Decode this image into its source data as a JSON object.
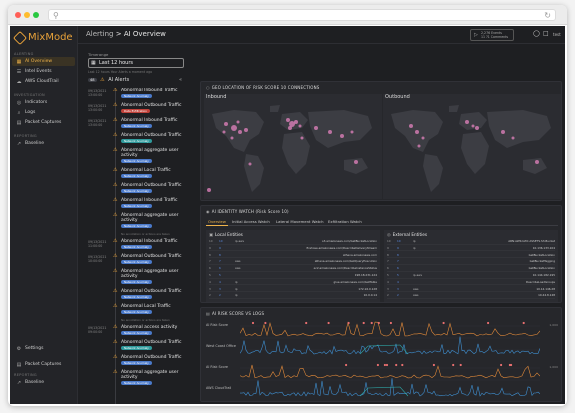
{
  "app": {
    "logo": "MixMode",
    "breadcrumb": {
      "parent": "Alerting",
      "current": "AI Overview"
    },
    "time_range": {
      "line1": "2,276 Events",
      "line2": "11 ?1 Comments"
    },
    "user": "test"
  },
  "sidebar": {
    "sections": [
      {
        "label": "ALERTING",
        "items": [
          {
            "label": "AI Overview",
            "icon": "grid-icon",
            "active": true
          },
          {
            "label": "Intel Events",
            "icon": "list-icon",
            "active": false
          },
          {
            "label": "AWS CloudTrail",
            "icon": "cloud-icon",
            "active": false
          }
        ]
      },
      {
        "label": "INVESTIGATION",
        "items": [
          {
            "label": "Indicators",
            "icon": "target-icon",
            "active": false
          },
          {
            "label": "Logs",
            "icon": "search-icon",
            "active": false
          },
          {
            "label": "Packet Captures",
            "icon": "packet-icon",
            "active": false
          }
        ]
      },
      {
        "label": "REPORTING",
        "items": [
          {
            "label": "Baseline",
            "icon": "trend-icon",
            "active": false
          }
        ]
      }
    ],
    "bottom": [
      {
        "label": "Settings",
        "icon": "gear-icon"
      },
      {
        "label": "Packet Captures",
        "icon": "packet-icon"
      }
    ],
    "bottom_section": "REPORTING",
    "bottom_item": {
      "label": "Baseline",
      "icon": "trend-icon"
    }
  },
  "alerts": {
    "timeframe_label": "Timerange",
    "timeframe_value": "Last 12 hours",
    "timeframe_note": "Last 12 hours  Your Alerts  a moment ago",
    "count": "48",
    "heading": "AI Alerts",
    "items": [
      {
        "ts1": "09/13/2021",
        "ts2": "13:00:00",
        "title": "Abnormal Inbound Traffic",
        "tag": "Network Anomaly",
        "tag_color": "blue"
      },
      {
        "ts1": "09/13/2021",
        "ts2": "13:00:00",
        "title": "Abnormal Outbound Traffic",
        "tag": "Data Exfiltration",
        "tag_color": "red"
      },
      {
        "ts1": "09/13/2021",
        "ts2": "13:00:00",
        "title": "Abnormal Inbound Traffic",
        "tag": "Network Anomaly",
        "tag_color": "blue"
      },
      {
        "ts1": "",
        "ts2": "",
        "title": "Abnormal Outbound Traffic",
        "tag": "Network Anomaly",
        "tag_color": "teal"
      },
      {
        "ts1": "",
        "ts2": "",
        "title": "Abnormal aggregate user activity",
        "tag": "Network Anomaly",
        "tag_color": "blue"
      },
      {
        "ts1": "",
        "ts2": "",
        "title": "Abnormal Local Traffic",
        "tag": "Network Anomaly",
        "tag_color": "blue"
      },
      {
        "ts1": "",
        "ts2": "",
        "title": "Abnormal Outbound Traffic",
        "tag": "Network Anomaly",
        "tag_color": "blue"
      },
      {
        "ts1": "",
        "ts2": "",
        "title": "Abnormal Inbound Traffic",
        "tag": "Network Anomaly",
        "tag_color": "blue"
      },
      {
        "ts1": "",
        "ts2": "",
        "title": "Abnormal aggregate user activity",
        "tag": "Network Anomaly",
        "tag_color": "blue"
      },
      {
        "ts1": "09/13/2021",
        "ts2": "11:00:00",
        "title": "Abnormal Inbound Traffic",
        "tag": "Network Anomaly",
        "tag_color": "blue"
      },
      {
        "ts1": "09/13/2021",
        "ts2": "10:00:00",
        "title": "Abnormal Outbound Traffic",
        "tag": "Network Anomaly",
        "tag_color": "blue"
      },
      {
        "ts1": "",
        "ts2": "",
        "title": "Abnormal aggregate user activity",
        "tag": "Network Anomaly",
        "tag_color": "blue"
      },
      {
        "ts1": "",
        "ts2": "",
        "title": "Abnormal Outbound Traffic",
        "tag": "Network Anomaly",
        "tag_color": "blue"
      },
      {
        "ts1": "",
        "ts2": "",
        "title": "Abnormal Local Traffic",
        "tag": "Network Anomaly",
        "tag_color": "blue"
      },
      {
        "ts1": "09/13/2021",
        "ts2": "09:00:00",
        "title": "Abnormal access activity",
        "tag": "Network Anomaly",
        "tag_color": "blue"
      },
      {
        "ts1": "",
        "ts2": "",
        "title": "Abnormal Outbound Traffic",
        "tag": "Network Anomaly",
        "tag_color": "teal"
      },
      {
        "ts1": "",
        "ts2": "",
        "title": "Abnormal Outbound Traffic",
        "tag": "Network Anomaly",
        "tag_color": "blue"
      },
      {
        "ts1": "",
        "ts2": "",
        "title": "Abnormal aggregate user activity",
        "tag": "Network Anomaly",
        "tag_color": "blue"
      }
    ],
    "group_note": "No annotation or actions are taken"
  },
  "geo": {
    "title": "GEO LOCATION OF RISK SCORE 10 CONNECTIONS",
    "inbound": "Inbound",
    "outbound": "Outbound"
  },
  "identity": {
    "title": "AI IDENTITY WATCH (Risk Score 10)",
    "tabs": [
      "Overview",
      "Initial Access Watch",
      "Lateral Movement Watch",
      "Exfiltration Watch"
    ],
    "local_title": "Local Entities",
    "external_title": "External Entities",
    "local_rows": [
      {
        "n": "10",
        "a": "10",
        "b": "ip.aws",
        "c": "s3.amazonaws.com/GetBucketLocation"
      },
      {
        "n": "9",
        "a": "9",
        "b": "",
        "c": "firehose.amazonaws.com/DescribeDeliveryStream"
      },
      {
        "n": "8",
        "a": "8",
        "b": "",
        "c": "athena.amazonaws.com"
      },
      {
        "n": "7",
        "a": "7",
        "b": "aws",
        "c": "athena.amazonaws.com/GetQueryExecution"
      },
      {
        "n": "6",
        "a": "6",
        "b": "aws",
        "c": "ec2.amazonaws.com/DescribeInstanceStatus"
      },
      {
        "n": "5",
        "a": "5",
        "b": "",
        "c": "198.18.231.124"
      },
      {
        "n": "4",
        "a": "4",
        "b": "ip",
        "c": "glue.amazonaws.com/GetTable"
      },
      {
        "n": "3",
        "a": "3",
        "b": "ip",
        "c": "172.16.0.128"
      },
      {
        "n": "2",
        "a": "2",
        "b": "ip",
        "c": "10.0.0.14"
      }
    ],
    "external_rows": [
      {
        "n": "10",
        "a": "10",
        "b": "ip",
        "c": "ARN:AWS:IAM::ASSETS.S3.Bucket"
      },
      {
        "n": "9",
        "a": "9",
        "b": "ip",
        "c": "10.136.133.104"
      },
      {
        "n": "8",
        "a": "8",
        "b": "",
        "c": "GetBucketLocation"
      },
      {
        "n": "7",
        "a": "7",
        "b": "",
        "c": "GetBucketTagging"
      },
      {
        "n": "6",
        "a": "6",
        "b": "",
        "c": "GetBucketLocation"
      },
      {
        "n": "5",
        "a": "5",
        "b": "ip.aws",
        "c": "10.144.182.195"
      },
      {
        "n": "4",
        "a": "4",
        "b": "",
        "c": "DescribeLoadGroups"
      },
      {
        "n": "3",
        "a": "3",
        "b": "aws",
        "c": "10.14.146.28"
      },
      {
        "n": "2",
        "a": "2",
        "b": "aws",
        "c": "10.44.8.128"
      }
    ]
  },
  "riskscore": {
    "title": "AI RISK SCORE VS LOGS",
    "rows": [
      {
        "label_top": "AI Risk Score",
        "label_bottom": "West Coast Office",
        "right": "1,000"
      },
      {
        "label_top": "AI Risk Score",
        "label_bottom": "AWS CloudTrail",
        "right": "1,000"
      }
    ]
  },
  "colors": {
    "accent": "#f0b44a",
    "bg": "#1e1f22",
    "map_dot": "#d07ab0",
    "line_orange": "#e28a3a",
    "line_blue": "#3f8fd0",
    "line_teal": "#2fa9a9"
  }
}
